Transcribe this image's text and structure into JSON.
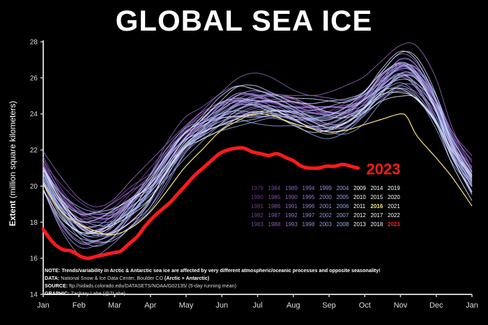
{
  "title": "GLOBAL SEA ICE",
  "colors": {
    "background": "#000000",
    "current": "#ff1a1a",
    "highlight_2016": "#ffe680",
    "axis": "#cccccc"
  },
  "chart_data": {
    "type": "line",
    "ylabel_bold": "Extent",
    "ylabel_rest": " (million square kilometers)",
    "ylim": [
      14,
      28
    ],
    "yticks": [
      "14",
      "16",
      "18",
      "20",
      "22",
      "24",
      "26",
      "28"
    ],
    "xticks": [
      "Jan",
      "Feb",
      "Mar",
      "Apr",
      "May",
      "Jun",
      "Jul",
      "Aug",
      "Sep",
      "Oct",
      "Nov",
      "Dec",
      "Jan"
    ],
    "xlim_days": [
      0,
      365
    ],
    "reference_days": [
      0,
      15,
      31,
      45,
      59,
      75,
      90,
      105,
      120,
      135,
      150,
      165,
      180,
      195,
      212,
      228,
      243,
      258,
      273,
      288,
      304,
      318,
      334,
      348,
      365
    ],
    "historical_climatology": [
      20.6,
      18.9,
      17.8,
      17.6,
      17.9,
      18.8,
      19.8,
      21.2,
      22.5,
      23.3,
      24.0,
      24.5,
      24.6,
      24.5,
      24.2,
      23.9,
      23.8,
      24.0,
      24.6,
      25.6,
      26.4,
      26.0,
      24.4,
      22.2,
      20.4
    ],
    "current_series": {
      "name": "2023",
      "days": [
        0,
        8,
        16,
        24,
        32,
        38,
        45,
        52,
        59,
        66,
        73,
        80,
        87,
        94,
        101,
        108,
        115,
        122,
        129,
        136,
        143,
        150,
        157,
        164,
        171,
        178,
        185,
        192,
        199,
        206,
        213,
        220,
        227,
        234,
        241,
        248,
        255,
        262,
        268
      ],
      "values": [
        17.6,
        16.9,
        16.5,
        16.4,
        16.1,
        16.0,
        16.1,
        16.2,
        16.3,
        16.4,
        16.8,
        17.2,
        17.8,
        18.3,
        18.7,
        19.1,
        19.6,
        20.1,
        20.6,
        21.0,
        21.4,
        21.8,
        22.0,
        22.1,
        22.1,
        21.9,
        21.8,
        21.7,
        21.8,
        21.6,
        21.4,
        21.1,
        21.0,
        21.0,
        21.1,
        21.1,
        21.2,
        21.1,
        21.0
      ],
      "end_label": "2023"
    },
    "series_2016": {
      "name": "2016",
      "days": [
        0,
        15,
        31,
        45,
        59,
        75,
        90,
        105,
        120,
        135,
        150,
        165,
        180,
        195,
        212,
        228,
        243,
        258,
        273,
        288,
        304,
        310,
        318,
        334,
        348,
        365
      ],
      "values": [
        20.1,
        18.6,
        17.9,
        17.5,
        17.3,
        17.7,
        18.5,
        19.7,
        21.0,
        22.0,
        23.0,
        23.6,
        24.0,
        23.9,
        23.5,
        23.2,
        23.0,
        23.1,
        23.4,
        23.7,
        24.0,
        23.8,
        22.8,
        21.6,
        20.5,
        18.9
      ]
    },
    "years": [
      1979,
      1980,
      1981,
      1982,
      1983,
      1984,
      1985,
      1986,
      1987,
      1988,
      1989,
      1990,
      1991,
      1992,
      1993,
      1994,
      1995,
      1996,
      1997,
      1998,
      1999,
      2000,
      2001,
      2002,
      2003,
      2004,
      2005,
      2006,
      2007,
      2008,
      2009,
      2010,
      2011,
      2012,
      2013,
      2014,
      2015,
      2016,
      2017,
      2018,
      2019,
      2020,
      2021,
      2022,
      2023
    ]
  },
  "notes": {
    "note": "NOTE: Trends/variability in Arctic & Antarctic sea ice are affected by very different atmospheric/oceanic processes and opposite seasonality!",
    "data_label": "DATA:",
    "data_text": " National Snow & Ice Data Center, Boulder CO ",
    "data_bold": "(Arctic + Antarctic)",
    "source_label": "SOURCE:",
    "source_text": " ftp://sidads.colorado.edu/DATASETS/NOAA/G02135/ (5-day running mean)",
    "graphic_label": "GRAPHIC:",
    "graphic_text": " Zachary Labe (@ZLabe)"
  }
}
